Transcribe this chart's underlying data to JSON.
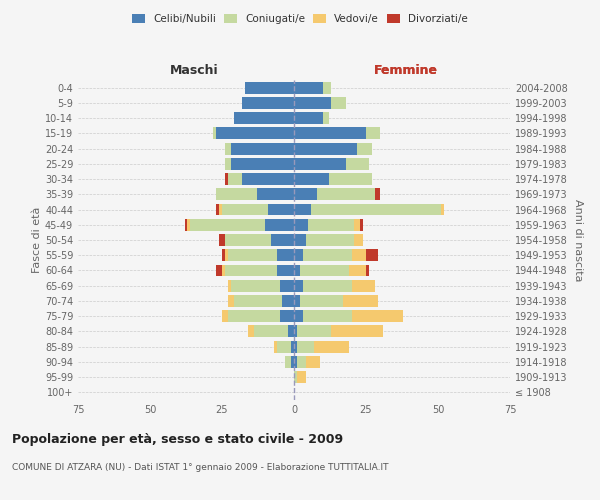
{
  "age_groups": [
    "100+",
    "95-99",
    "90-94",
    "85-89",
    "80-84",
    "75-79",
    "70-74",
    "65-69",
    "60-64",
    "55-59",
    "50-54",
    "45-49",
    "40-44",
    "35-39",
    "30-34",
    "25-29",
    "20-24",
    "15-19",
    "10-14",
    "5-9",
    "0-4"
  ],
  "birth_years": [
    "≤ 1908",
    "1909-1913",
    "1914-1918",
    "1919-1923",
    "1924-1928",
    "1929-1933",
    "1934-1938",
    "1939-1943",
    "1944-1948",
    "1949-1953",
    "1954-1958",
    "1959-1963",
    "1964-1968",
    "1969-1973",
    "1974-1978",
    "1979-1983",
    "1984-1988",
    "1989-1993",
    "1994-1998",
    "1999-2003",
    "2004-2008"
  ],
  "male": {
    "celibi": [
      0,
      0,
      1,
      1,
      2,
      5,
      4,
      5,
      6,
      6,
      8,
      10,
      9,
      13,
      18,
      22,
      22,
      27,
      21,
      18,
      17
    ],
    "coniugati": [
      0,
      0,
      2,
      5,
      12,
      18,
      17,
      17,
      18,
      17,
      16,
      26,
      16,
      14,
      5,
      2,
      2,
      1,
      0,
      0,
      0
    ],
    "vedovi": [
      0,
      0,
      0,
      1,
      2,
      2,
      2,
      1,
      1,
      1,
      0,
      1,
      1,
      0,
      0,
      0,
      0,
      0,
      0,
      0,
      0
    ],
    "divorziati": [
      0,
      0,
      0,
      0,
      0,
      0,
      0,
      0,
      2,
      1,
      2,
      1,
      1,
      0,
      1,
      0,
      0,
      0,
      0,
      0,
      0
    ]
  },
  "female": {
    "nubili": [
      0,
      0,
      1,
      1,
      1,
      3,
      2,
      3,
      2,
      3,
      4,
      5,
      6,
      8,
      12,
      18,
      22,
      25,
      10,
      13,
      10
    ],
    "coniugate": [
      0,
      1,
      3,
      6,
      12,
      17,
      15,
      17,
      17,
      17,
      17,
      16,
      45,
      20,
      15,
      8,
      5,
      5,
      2,
      5,
      3
    ],
    "vedove": [
      0,
      3,
      5,
      12,
      18,
      18,
      12,
      8,
      6,
      5,
      3,
      2,
      1,
      0,
      0,
      0,
      0,
      0,
      0,
      0,
      0
    ],
    "divorziate": [
      0,
      0,
      0,
      0,
      0,
      0,
      0,
      0,
      1,
      4,
      0,
      1,
      0,
      2,
      0,
      0,
      0,
      0,
      0,
      0,
      0
    ]
  },
  "colors": {
    "celibi_nubili": "#4a7fb5",
    "coniugati": "#c5d9a0",
    "vedovi": "#f5c96e",
    "divorziati": "#c0392b"
  },
  "xlim": 75,
  "title": "Popolazione per età, sesso e stato civile - 2009",
  "subtitle": "COMUNE DI ATZARA (NU) - Dati ISTAT 1° gennaio 2009 - Elaborazione TUTTITALIA.IT",
  "ylabel_left": "Fasce di età",
  "ylabel_right": "Anni di nascita",
  "xlabel_left": "Maschi",
  "xlabel_right": "Femmine",
  "legend_labels": [
    "Celibi/Nubili",
    "Coniugati/e",
    "Vedovi/e",
    "Divorziati/e"
  ],
  "bg_color": "#f5f5f5"
}
